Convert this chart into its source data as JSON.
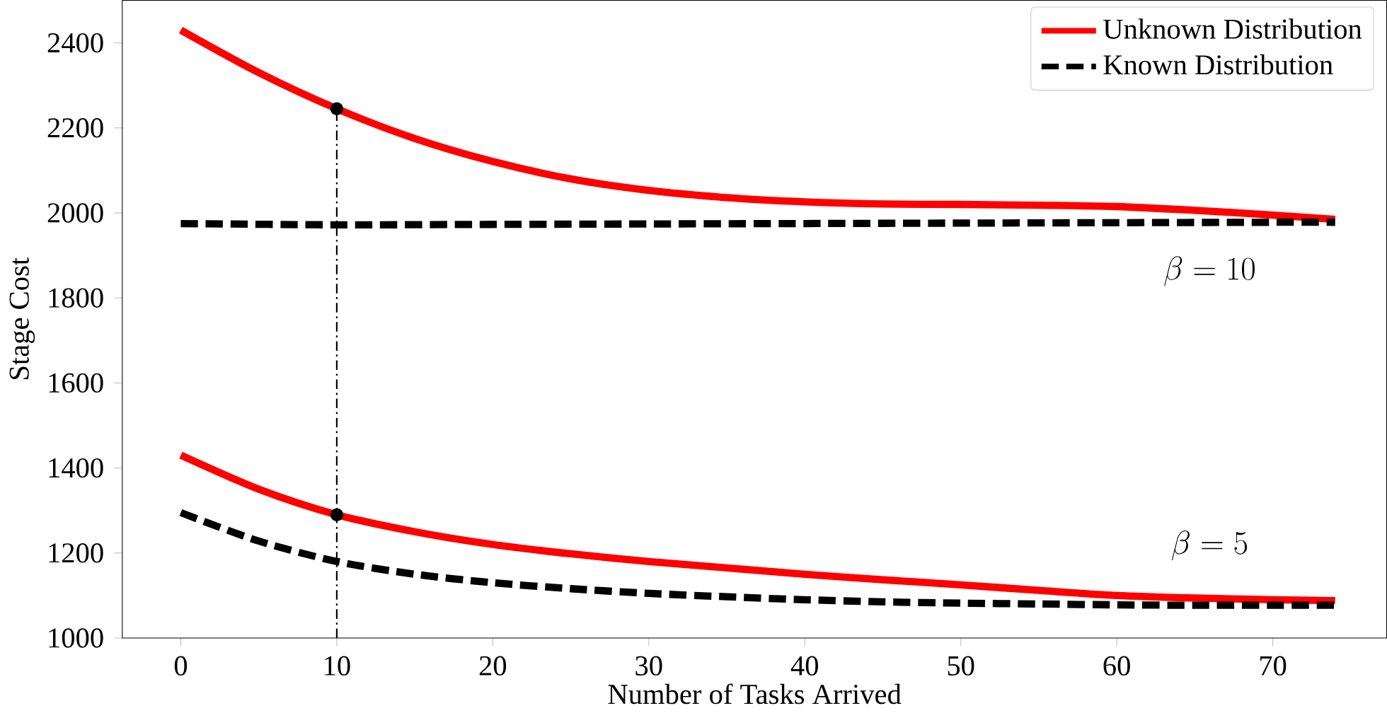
{
  "chart_data": {
    "type": "line",
    "xlabel": "Number of Tasks Arrived",
    "ylabel": "Stage Cost",
    "xlim": [
      -3.75,
      77.3
    ],
    "ylim": [
      1000,
      2500
    ],
    "xticks": [
      0,
      10,
      20,
      30,
      40,
      50,
      60,
      70
    ],
    "yticks": [
      1000,
      1200,
      1400,
      1600,
      1800,
      2000,
      2200,
      2400
    ],
    "grid": false,
    "legend": "top right",
    "series": [
      {
        "name": "Unknown Distribution",
        "color": "#ff0000",
        "line_style": "solid",
        "x": [
          0,
          5,
          10,
          15,
          20,
          25,
          30,
          35,
          40,
          45,
          50,
          55,
          60,
          65,
          70,
          74
        ],
        "values": [
          2430,
          2330,
          2245,
          2175,
          2121,
          2080,
          2053,
          2036,
          2026,
          2021,
          2020,
          2018,
          2015,
          2006,
          1995,
          1985
        ]
      },
      {
        "name": "Known Distribution",
        "color": "#000000",
        "line_style": "dashed",
        "x": [
          0,
          10,
          20,
          30,
          40,
          50,
          60,
          70,
          74
        ],
        "values": [
          1975,
          1972,
          1973,
          1974,
          1975,
          1976,
          1977,
          1978,
          1978
        ]
      },
      {
        "color": "#ff0000",
        "line_style": "solid",
        "x": [
          0,
          5,
          10,
          15,
          20,
          25,
          30,
          35,
          40,
          45,
          50,
          55,
          60,
          65,
          70,
          74
        ],
        "values": [
          1430,
          1350,
          1290,
          1250,
          1220,
          1198,
          1180,
          1165,
          1150,
          1137,
          1125,
          1112,
          1100,
          1094,
          1090,
          1088
        ]
      },
      {
        "color": "#000000",
        "line_style": "dashed",
        "x": [
          0,
          5,
          10,
          15,
          20,
          25,
          30,
          35,
          40,
          45,
          50,
          55,
          60,
          65,
          70,
          74
        ],
        "values": [
          1295,
          1228,
          1180,
          1150,
          1130,
          1116,
          1105,
          1097,
          1090,
          1085,
          1082,
          1080,
          1078,
          1077,
          1077,
          1077
        ]
      },
      {
        "type": "scatter",
        "color": "#000000",
        "marker": "circle",
        "x": [
          10,
          10
        ],
        "values": [
          2245,
          1290
        ]
      }
    ],
    "ref_lines": [
      {
        "axis": "x",
        "value": 10,
        "color": "#000000",
        "line_style": "dashdot"
      }
    ],
    "annotations": [
      "\\beta = 10",
      "\\beta = 5"
    ]
  }
}
